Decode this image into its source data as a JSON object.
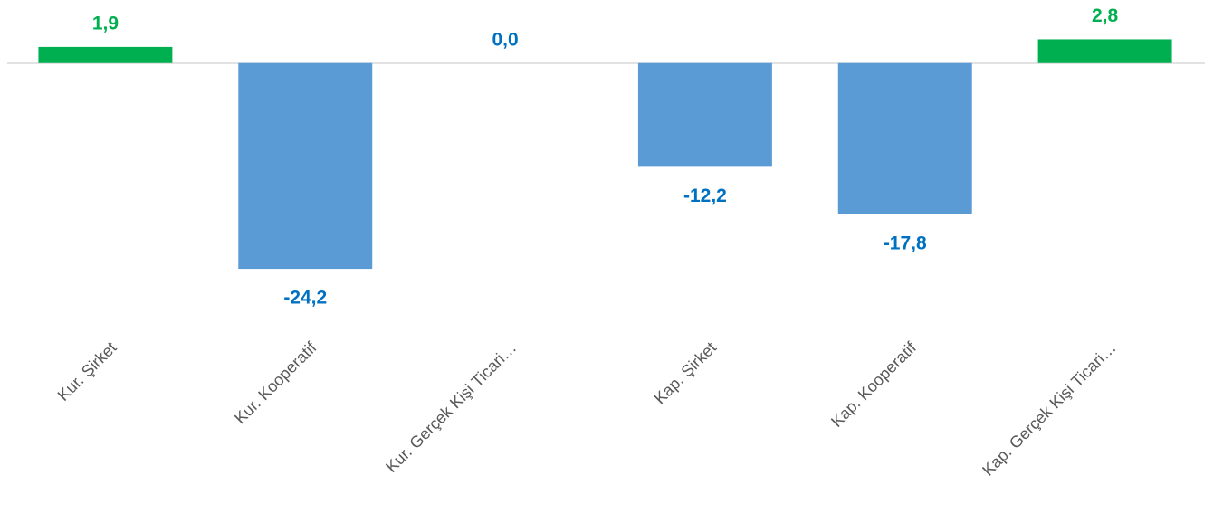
{
  "chart_data": {
    "type": "bar",
    "categories": [
      "Kur. Şirket",
      "Kur. Kooperatif",
      "Kur. Gerçek Kişi Ticari…",
      "Kap. Şirket",
      "Kap. Kooperatif",
      "Kap. Gerçek Kişi Ticari…"
    ],
    "values": [
      1.9,
      -24.2,
      0.0,
      -12.2,
      -17.8,
      2.8
    ],
    "value_labels": [
      "1,9",
      "-24,2",
      "0,0",
      "-12,2",
      "-17,8",
      "2,8"
    ],
    "colors": [
      "#00b050",
      "#5b9bd5",
      "#5b9bd5",
      "#5b9bd5",
      "#5b9bd5",
      "#00b050"
    ],
    "label_colors": [
      "#00b050",
      "#0070c0",
      "#0070c0",
      "#0070c0",
      "#0070c0",
      "#00b050"
    ],
    "ylim": [
      -26,
      7
    ]
  }
}
